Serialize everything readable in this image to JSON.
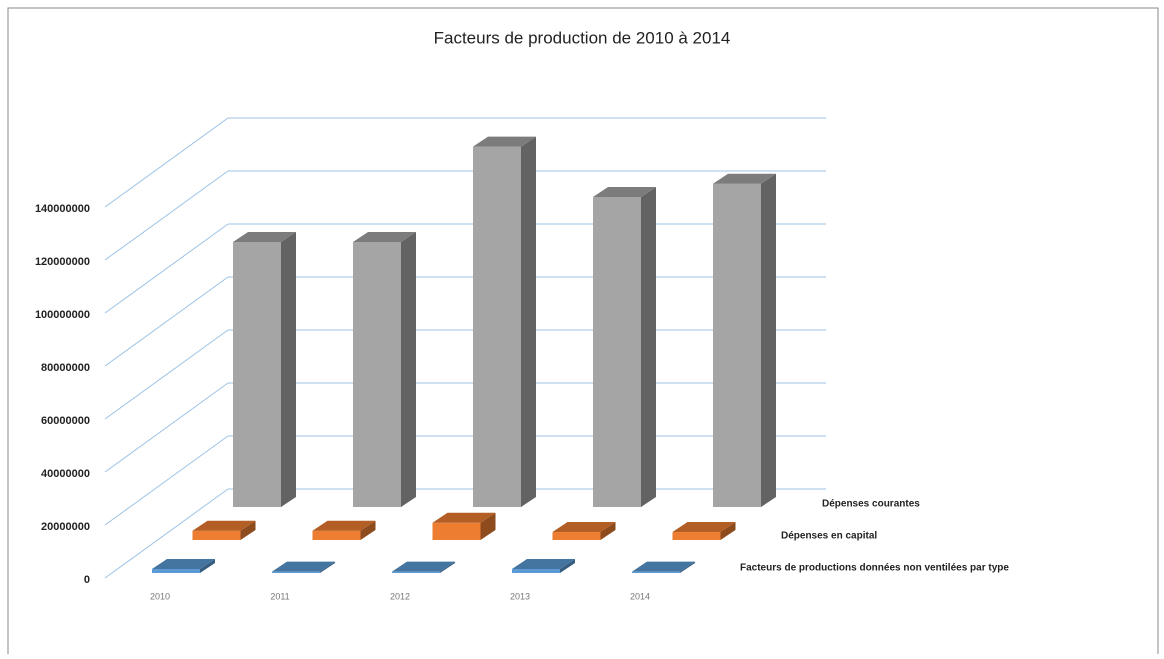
{
  "chart_data": {
    "type": "bar3d",
    "title": "Facteurs de production de 2010 à 2014",
    "categories": [
      "2010",
      "2011",
      "2012",
      "2013",
      "2014"
    ],
    "series": [
      {
        "name": "Facteurs de productions données non ventilées par type",
        "color": "#5b9bd5",
        "values": [
          1500000,
          500000,
          500000,
          1500000,
          500000
        ]
      },
      {
        "name": "Dépenses en capital",
        "color": "#ed7d31",
        "values": [
          3500000,
          3500000,
          6500000,
          3000000,
          3000000
        ]
      },
      {
        "name": "Dépenses courantes",
        "color": "#a5a5a5",
        "values": [
          100000000,
          100000000,
          136000000,
          117000000,
          122000000
        ]
      }
    ],
    "ylim": [
      0,
      140000000
    ],
    "yticks": [
      0,
      20000000,
      40000000,
      60000000,
      80000000,
      100000000,
      120000000,
      140000000
    ],
    "grid": true
  }
}
